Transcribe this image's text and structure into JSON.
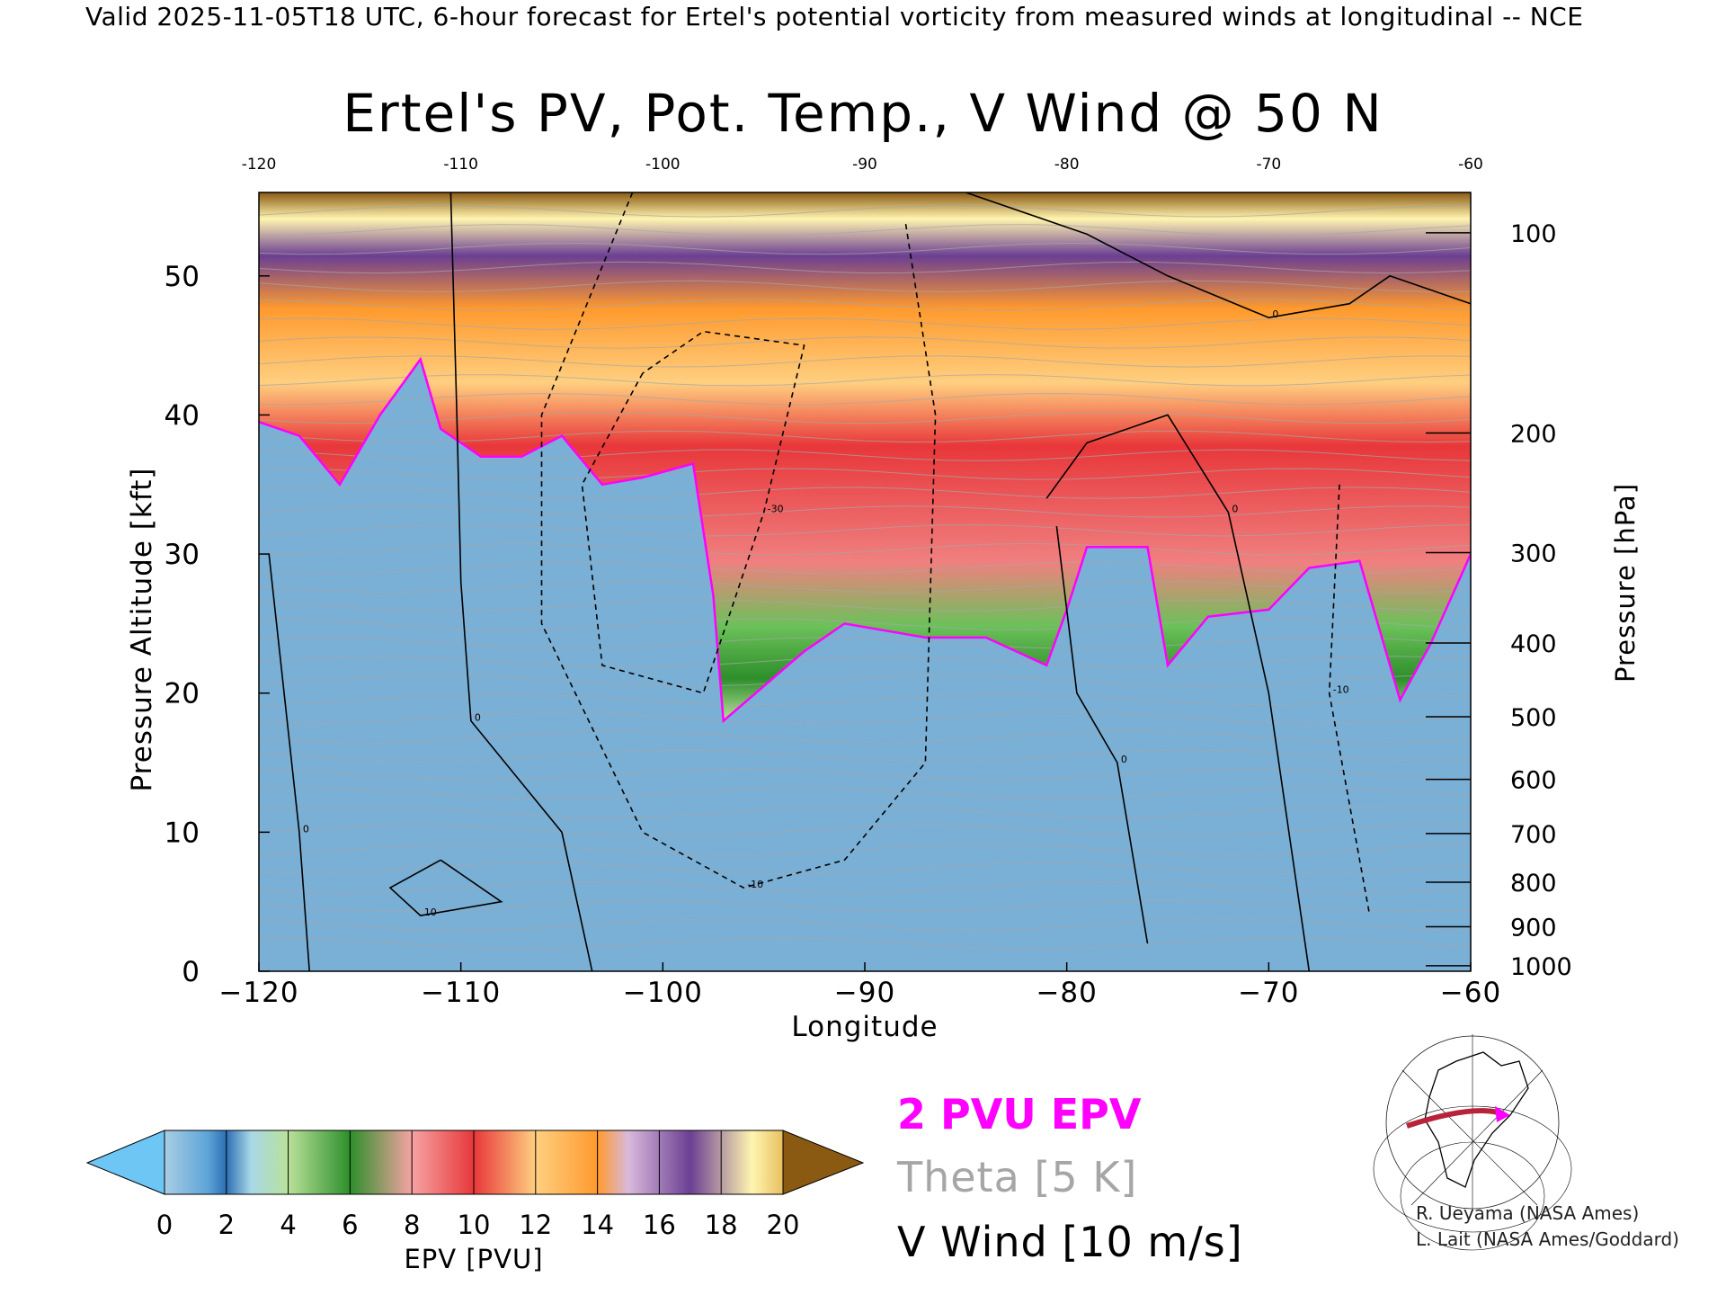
{
  "header": {
    "valid_line": "Valid 2025-11-05T18 UTC, 6-hour forecast for Ertel's potential vorticity from measured winds at longitudinal -- NCE"
  },
  "colors": {
    "pv_2pvu": "#ff00ff",
    "theta": "#a6a6a6",
    "v_wind": "#000000",
    "colorbar": [
      "#6ec6f5",
      "#a9cde4",
      "#5da5d8",
      "#2d6fb3",
      "#b9e19a",
      "#6cc15a",
      "#2d8f2b",
      "#f6a3a3",
      "#e8373a",
      "#ffcf80",
      "#ff9a2e",
      "#d9b9dc",
      "#6b3f93",
      "#fff5b0",
      "#8b5a12"
    ]
  },
  "chart_data": {
    "type": "heatmap",
    "title": "Ertel's PV, Pot. Temp., V Wind @ 50 N",
    "xlabel": "Longitude",
    "ylabel": "Pressure Altitude [kft]",
    "y2label": "Pressure [hPa]",
    "xlim": [
      -120,
      -60
    ],
    "ylim": [
      0,
      56
    ],
    "x_ticks": [
      -120,
      -110,
      -100,
      -90,
      -80,
      -70,
      -60
    ],
    "x_tick_labels": [
      "−120",
      "−110",
      "−100",
      "−90",
      "−80",
      "−70",
      "−60"
    ],
    "top_tick_labels": [
      "-120",
      "-110",
      "-100",
      "-90",
      "-80",
      "-70",
      "-60"
    ],
    "y_ticks": [
      0,
      10,
      20,
      30,
      40,
      50
    ],
    "y_tick_labels": [
      "0",
      "10",
      "20",
      "30",
      "40",
      "50"
    ],
    "pressure_ticks": [
      {
        "hpa": 100,
        "kft": 53.1,
        "label": "100"
      },
      {
        "hpa": 200,
        "kft": 38.7,
        "label": "200"
      },
      {
        "hpa": 300,
        "kft": 30.1,
        "label": "300"
      },
      {
        "hpa": 400,
        "kft": 23.6,
        "label": "400"
      },
      {
        "hpa": 500,
        "kft": 18.3,
        "label": "500"
      },
      {
        "hpa": 600,
        "kft": 13.8,
        "label": "600"
      },
      {
        "hpa": 700,
        "kft": 9.9,
        "label": "700"
      },
      {
        "hpa": 800,
        "kft": 6.4,
        "label": "800"
      },
      {
        "hpa": 900,
        "kft": 3.2,
        "label": "900"
      },
      {
        "hpa": 1000,
        "kft": 0.4,
        "label": "1000"
      }
    ],
    "pv_2pvu_altitude_kft": [
      {
        "lon": -120,
        "kft": 39.5
      },
      {
        "lon": -118,
        "kft": 38.5
      },
      {
        "lon": -116,
        "kft": 35
      },
      {
        "lon": -114,
        "kft": 40
      },
      {
        "lon": -112,
        "kft": 44
      },
      {
        "lon": -111,
        "kft": 39
      },
      {
        "lon": -109,
        "kft": 37
      },
      {
        "lon": -107,
        "kft": 37
      },
      {
        "lon": -105,
        "kft": 38.5
      },
      {
        "lon": -103,
        "kft": 35
      },
      {
        "lon": -101,
        "kft": 35.5
      },
      {
        "lon": -98.5,
        "kft": 36.5
      },
      {
        "lon": -97.5,
        "kft": 27
      },
      {
        "lon": -97,
        "kft": 18
      },
      {
        "lon": -95,
        "kft": 20.5
      },
      {
        "lon": -93,
        "kft": 23
      },
      {
        "lon": -91,
        "kft": 25
      },
      {
        "lon": -87,
        "kft": 24
      },
      {
        "lon": -84,
        "kft": 24
      },
      {
        "lon": -81,
        "kft": 22
      },
      {
        "lon": -80,
        "kft": 26
      },
      {
        "lon": -79,
        "kft": 30.5
      },
      {
        "lon": -76,
        "kft": 30.5
      },
      {
        "lon": -75,
        "kft": 22
      },
      {
        "lon": -73,
        "kft": 25.5
      },
      {
        "lon": -70,
        "kft": 26
      },
      {
        "lon": -68,
        "kft": 29
      },
      {
        "lon": -65.5,
        "kft": 29.5
      },
      {
        "lon": -63.5,
        "kft": 19.5
      },
      {
        "lon": -62,
        "kft": 23.5
      },
      {
        "lon": -60,
        "kft": 30
      }
    ],
    "v_wind_contours": [
      {
        "label": "0",
        "style": "solid",
        "points": [
          [
            -110.5,
            56
          ],
          [
            -110.2,
            40
          ],
          [
            -110,
            28
          ],
          [
            -109.5,
            18
          ],
          [
            -105,
            10
          ],
          [
            -103.5,
            0
          ]
        ]
      },
      {
        "label": "0",
        "style": "solid",
        "points": [
          [
            -119.5,
            30
          ],
          [
            -118,
            10
          ],
          [
            -117.5,
            0
          ]
        ]
      },
      {
        "label": "10",
        "style": "solid",
        "points": [
          [
            -111,
            8
          ],
          [
            -108,
            5
          ],
          [
            -112,
            4
          ],
          [
            -113.5,
            6
          ],
          [
            -111,
            8
          ]
        ]
      },
      {
        "label": "-10",
        "style": "dashed",
        "points": [
          [
            -101.5,
            56
          ],
          [
            -106,
            40
          ],
          [
            -106,
            25
          ],
          [
            -101,
            10
          ],
          [
            -96,
            6
          ],
          [
            -91,
            8
          ],
          [
            -87,
            15
          ],
          [
            -86.5,
            40
          ],
          [
            -88,
            54
          ]
        ]
      },
      {
        "label": "-30",
        "style": "dashed",
        "points": [
          [
            -101,
            43
          ],
          [
            -104,
            35
          ],
          [
            -103,
            22
          ],
          [
            -98,
            20
          ],
          [
            -95,
            33
          ],
          [
            -93,
            45
          ],
          [
            -98,
            46
          ],
          [
            -101,
            43
          ]
        ]
      },
      {
        "label": "0",
        "style": "solid",
        "points": [
          [
            -81,
            34
          ],
          [
            -79,
            38
          ],
          [
            -75,
            40
          ],
          [
            -72,
            33
          ],
          [
            -70,
            20
          ],
          [
            -68,
            0
          ]
        ]
      },
      {
        "label": "0",
        "style": "solid",
        "points": [
          [
            -80.5,
            32
          ],
          [
            -79.5,
            20
          ],
          [
            -77.5,
            15
          ],
          [
            -76,
            2
          ]
        ]
      },
      {
        "label": "0",
        "style": "solid",
        "points": [
          [
            -85,
            56
          ],
          [
            -79,
            53
          ],
          [
            -75,
            50
          ],
          [
            -70,
            47
          ],
          [
            -66,
            48
          ],
          [
            -64,
            50
          ],
          [
            -60,
            48
          ]
        ]
      },
      {
        "label": "-10",
        "style": "dashed",
        "points": [
          [
            -66.5,
            35
          ],
          [
            -67,
            20
          ],
          [
            -65,
            4
          ]
        ]
      }
    ],
    "colorbar": {
      "label": "EPV [PVU]",
      "ticks": [
        0,
        2,
        4,
        6,
        8,
        10,
        12,
        14,
        16,
        18,
        20
      ],
      "tick_labels": [
        "0",
        "2",
        "4",
        "6",
        "8",
        "10",
        "12",
        "14",
        "16",
        "18",
        "20"
      ]
    },
    "legend": [
      {
        "label": "2 PVU EPV",
        "color": "#ff00ff"
      },
      {
        "label": "Theta [5 K]",
        "color": "#a6a6a6"
      },
      {
        "label": "V Wind [10 m/s]",
        "color": "#000000"
      }
    ]
  },
  "credits": [
    "R. Ueyama (NASA Ames)",
    "L. Lait (NASA Ames/Goddard)"
  ]
}
